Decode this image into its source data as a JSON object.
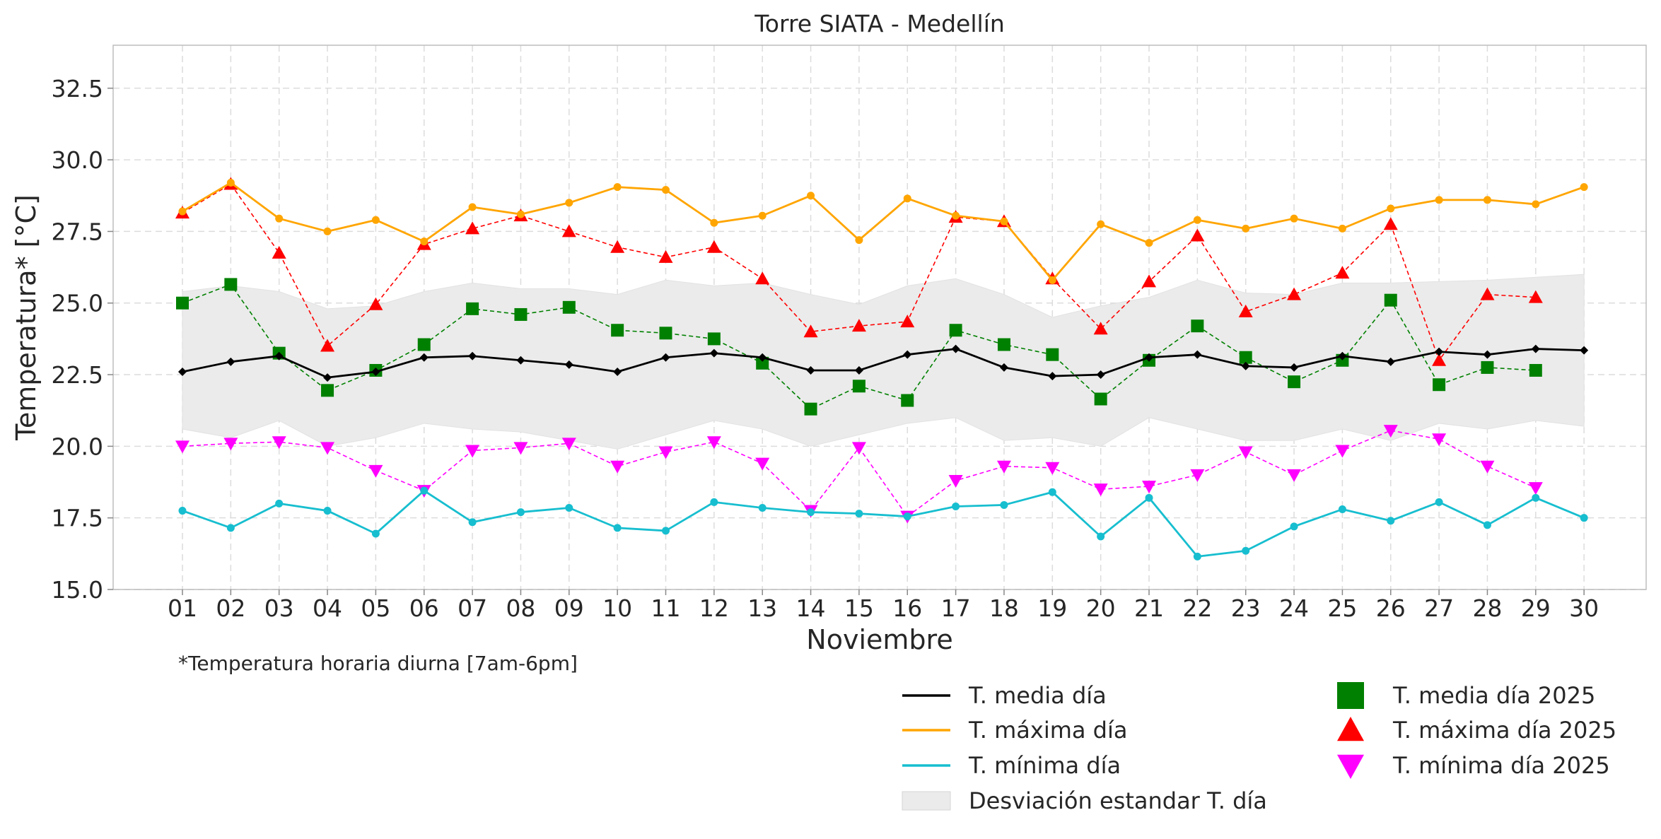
{
  "chart_data": {
    "type": "line",
    "title": "Torre SIATA - Medellín",
    "xlabel": "Noviembre",
    "ylabel": "Temperatura* [°C]",
    "footnote": "*Temperatura horaria diurna [7am-6pm]",
    "ylim": [
      15.0,
      34.0
    ],
    "yticks": [
      "15.0",
      "17.5",
      "20.0",
      "22.5",
      "25.0",
      "27.5",
      "30.0",
      "32.5"
    ],
    "categories": [
      "01",
      "02",
      "03",
      "04",
      "05",
      "06",
      "07",
      "08",
      "09",
      "10",
      "11",
      "12",
      "13",
      "14",
      "15",
      "16",
      "17",
      "18",
      "19",
      "20",
      "21",
      "22",
      "23",
      "24",
      "25",
      "26",
      "27",
      "28",
      "29",
      "30"
    ],
    "grid": true,
    "legend_placement": "bottom-right",
    "series": [
      {
        "name": "T. media día",
        "color": "#000000",
        "marker": "diamond",
        "line": "solid",
        "values": [
          22.6,
          22.95,
          23.15,
          22.4,
          22.6,
          23.1,
          23.15,
          23.0,
          22.85,
          22.6,
          23.1,
          23.25,
          23.1,
          22.65,
          22.65,
          23.2,
          23.4,
          22.75,
          22.45,
          22.5,
          23.1,
          23.2,
          22.8,
          22.75,
          23.15,
          22.95,
          23.3,
          23.2,
          23.4,
          23.35
        ]
      },
      {
        "name": "T. máxima día",
        "color": "#FFA500",
        "marker": "circle",
        "line": "solid",
        "values": [
          28.2,
          29.2,
          27.95,
          27.5,
          27.9,
          27.15,
          28.35,
          28.1,
          28.5,
          29.05,
          28.95,
          27.8,
          28.05,
          28.75,
          27.2,
          28.65,
          28.05,
          27.85,
          25.8,
          27.75,
          27.1,
          27.9,
          27.6,
          27.95,
          27.6,
          28.3,
          28.6,
          28.6,
          28.45,
          29.05
        ]
      },
      {
        "name": "T. mínima día",
        "color": "#17BECF",
        "marker": "circle",
        "line": "solid",
        "values": [
          17.75,
          17.15,
          18.0,
          17.75,
          16.95,
          18.45,
          17.35,
          17.7,
          17.85,
          17.15,
          17.05,
          18.05,
          17.85,
          17.7,
          17.65,
          17.55,
          17.9,
          17.95,
          18.4,
          16.85,
          18.2,
          16.15,
          16.35,
          17.2,
          17.8,
          17.4,
          18.05,
          17.25,
          18.2,
          17.5
        ]
      },
      {
        "name": "Desviación estandar T. día",
        "color": "#ebebeb",
        "type": "band",
        "upper": [
          25.4,
          25.6,
          25.4,
          24.8,
          24.9,
          25.4,
          25.7,
          25.5,
          25.5,
          25.3,
          25.8,
          25.6,
          25.7,
          25.3,
          24.95,
          25.6,
          25.85,
          25.3,
          24.5,
          24.9,
          25.2,
          25.8,
          25.35,
          25.3,
          25.7,
          25.7,
          25.75,
          25.8,
          25.9,
          26.0
        ],
        "lower": [
          20.6,
          20.3,
          20.9,
          20.0,
          20.3,
          20.8,
          20.6,
          20.5,
          20.2,
          19.9,
          20.4,
          20.9,
          20.6,
          20.0,
          20.4,
          20.8,
          21.0,
          20.2,
          20.3,
          20.0,
          21.0,
          20.6,
          20.2,
          20.2,
          20.6,
          20.2,
          20.8,
          20.6,
          20.9,
          20.7
        ]
      },
      {
        "name": "T. media día 2025",
        "color": "#008000",
        "marker": "square",
        "line": "dashed",
        "values": [
          25.0,
          25.65,
          23.25,
          21.95,
          22.65,
          23.55,
          24.8,
          24.6,
          24.85,
          24.05,
          23.95,
          23.75,
          22.9,
          21.3,
          22.1,
          21.6,
          24.05,
          23.55,
          23.2,
          21.65,
          23.0,
          24.2,
          23.1,
          22.25,
          23.0,
          25.1,
          22.15,
          22.75,
          22.65,
          null
        ]
      },
      {
        "name": "T. máxima día 2025",
        "color": "#FF0000",
        "marker": "triangle-up",
        "line": "dashed",
        "values": [
          28.15,
          29.15,
          26.75,
          23.5,
          24.95,
          27.05,
          27.6,
          28.05,
          27.5,
          26.95,
          26.6,
          26.95,
          25.85,
          24.0,
          24.2,
          24.35,
          28.0,
          27.85,
          25.85,
          24.1,
          25.75,
          27.35,
          24.7,
          25.3,
          26.05,
          27.75,
          23.0,
          25.3,
          25.2,
          null
        ]
      },
      {
        "name": "T. mínima día 2025",
        "color": "#FF00FF",
        "marker": "triangle-down",
        "line": "dashed",
        "values": [
          20.0,
          20.1,
          20.15,
          19.95,
          19.15,
          18.45,
          19.85,
          19.95,
          20.1,
          19.3,
          19.8,
          20.15,
          19.4,
          17.75,
          19.95,
          17.55,
          18.8,
          19.3,
          19.25,
          18.5,
          18.6,
          19.0,
          19.8,
          19.0,
          19.85,
          20.55,
          20.25,
          19.3,
          18.55,
          null
        ]
      }
    ]
  }
}
